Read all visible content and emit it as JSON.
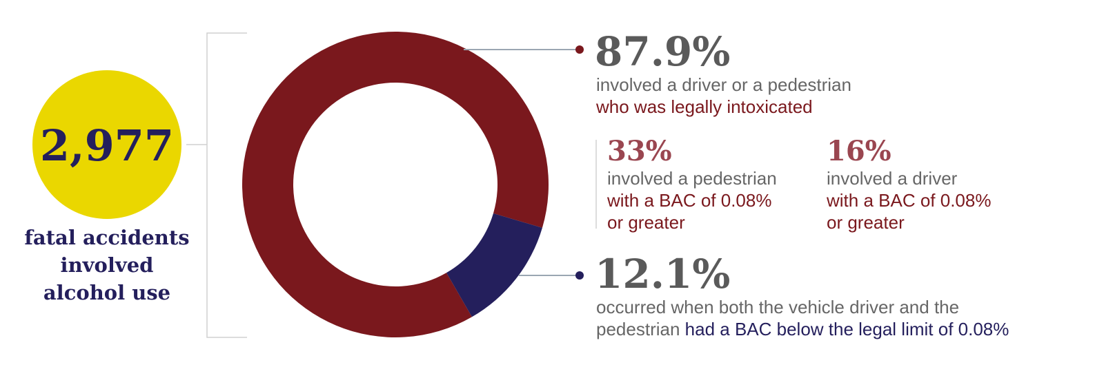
{
  "chart_data": {
    "type": "pie",
    "values": [
      87.9,
      12.1
    ],
    "value_labels": [
      "87.9%",
      "12.1%"
    ],
    "colors": [
      "#7a181d",
      "#241f5c"
    ],
    "descriptions": [
      [
        [
          {
            "text": "involved a driver or a pedestrian",
            "color": "#666666"
          }
        ],
        [
          {
            "text": "who was legally intoxicated",
            "color": "#7a181d"
          }
        ]
      ],
      [
        [
          {
            "text": "occurred when both the vehicle driver and the",
            "color": "#666666"
          }
        ],
        [
          {
            "text": "pedestrian ",
            "color": "#666666"
          },
          {
            "text": "had a BAC below the legal limit of 0.08%",
            "color": "#241f5c"
          }
        ]
      ]
    ],
    "total": {
      "value": 2977,
      "label": "2,977",
      "color": "#ead700",
      "caption": [
        "fatal accidents",
        "involved",
        "alcohol use"
      ]
    },
    "breakdown": {
      "values": [
        33,
        16
      ],
      "value_labels": [
        "33%",
        "16%"
      ],
      "descriptions": [
        [
          [
            {
              "text": "involved a pedestrian",
              "color": "#666666"
            }
          ],
          [
            {
              "text": "with a BAC of 0.08%",
              "color": "#7a181d"
            }
          ],
          [
            {
              "text": "or greater",
              "color": "#7a181d"
            }
          ]
        ],
        [
          [
            {
              "text": "involved a driver",
              "color": "#666666"
            }
          ],
          [
            {
              "text": "with a BAC of 0.08%",
              "color": "#7a181d"
            }
          ],
          [
            {
              "text": "or greater",
              "color": "#7a181d"
            }
          ]
        ]
      ]
    }
  }
}
